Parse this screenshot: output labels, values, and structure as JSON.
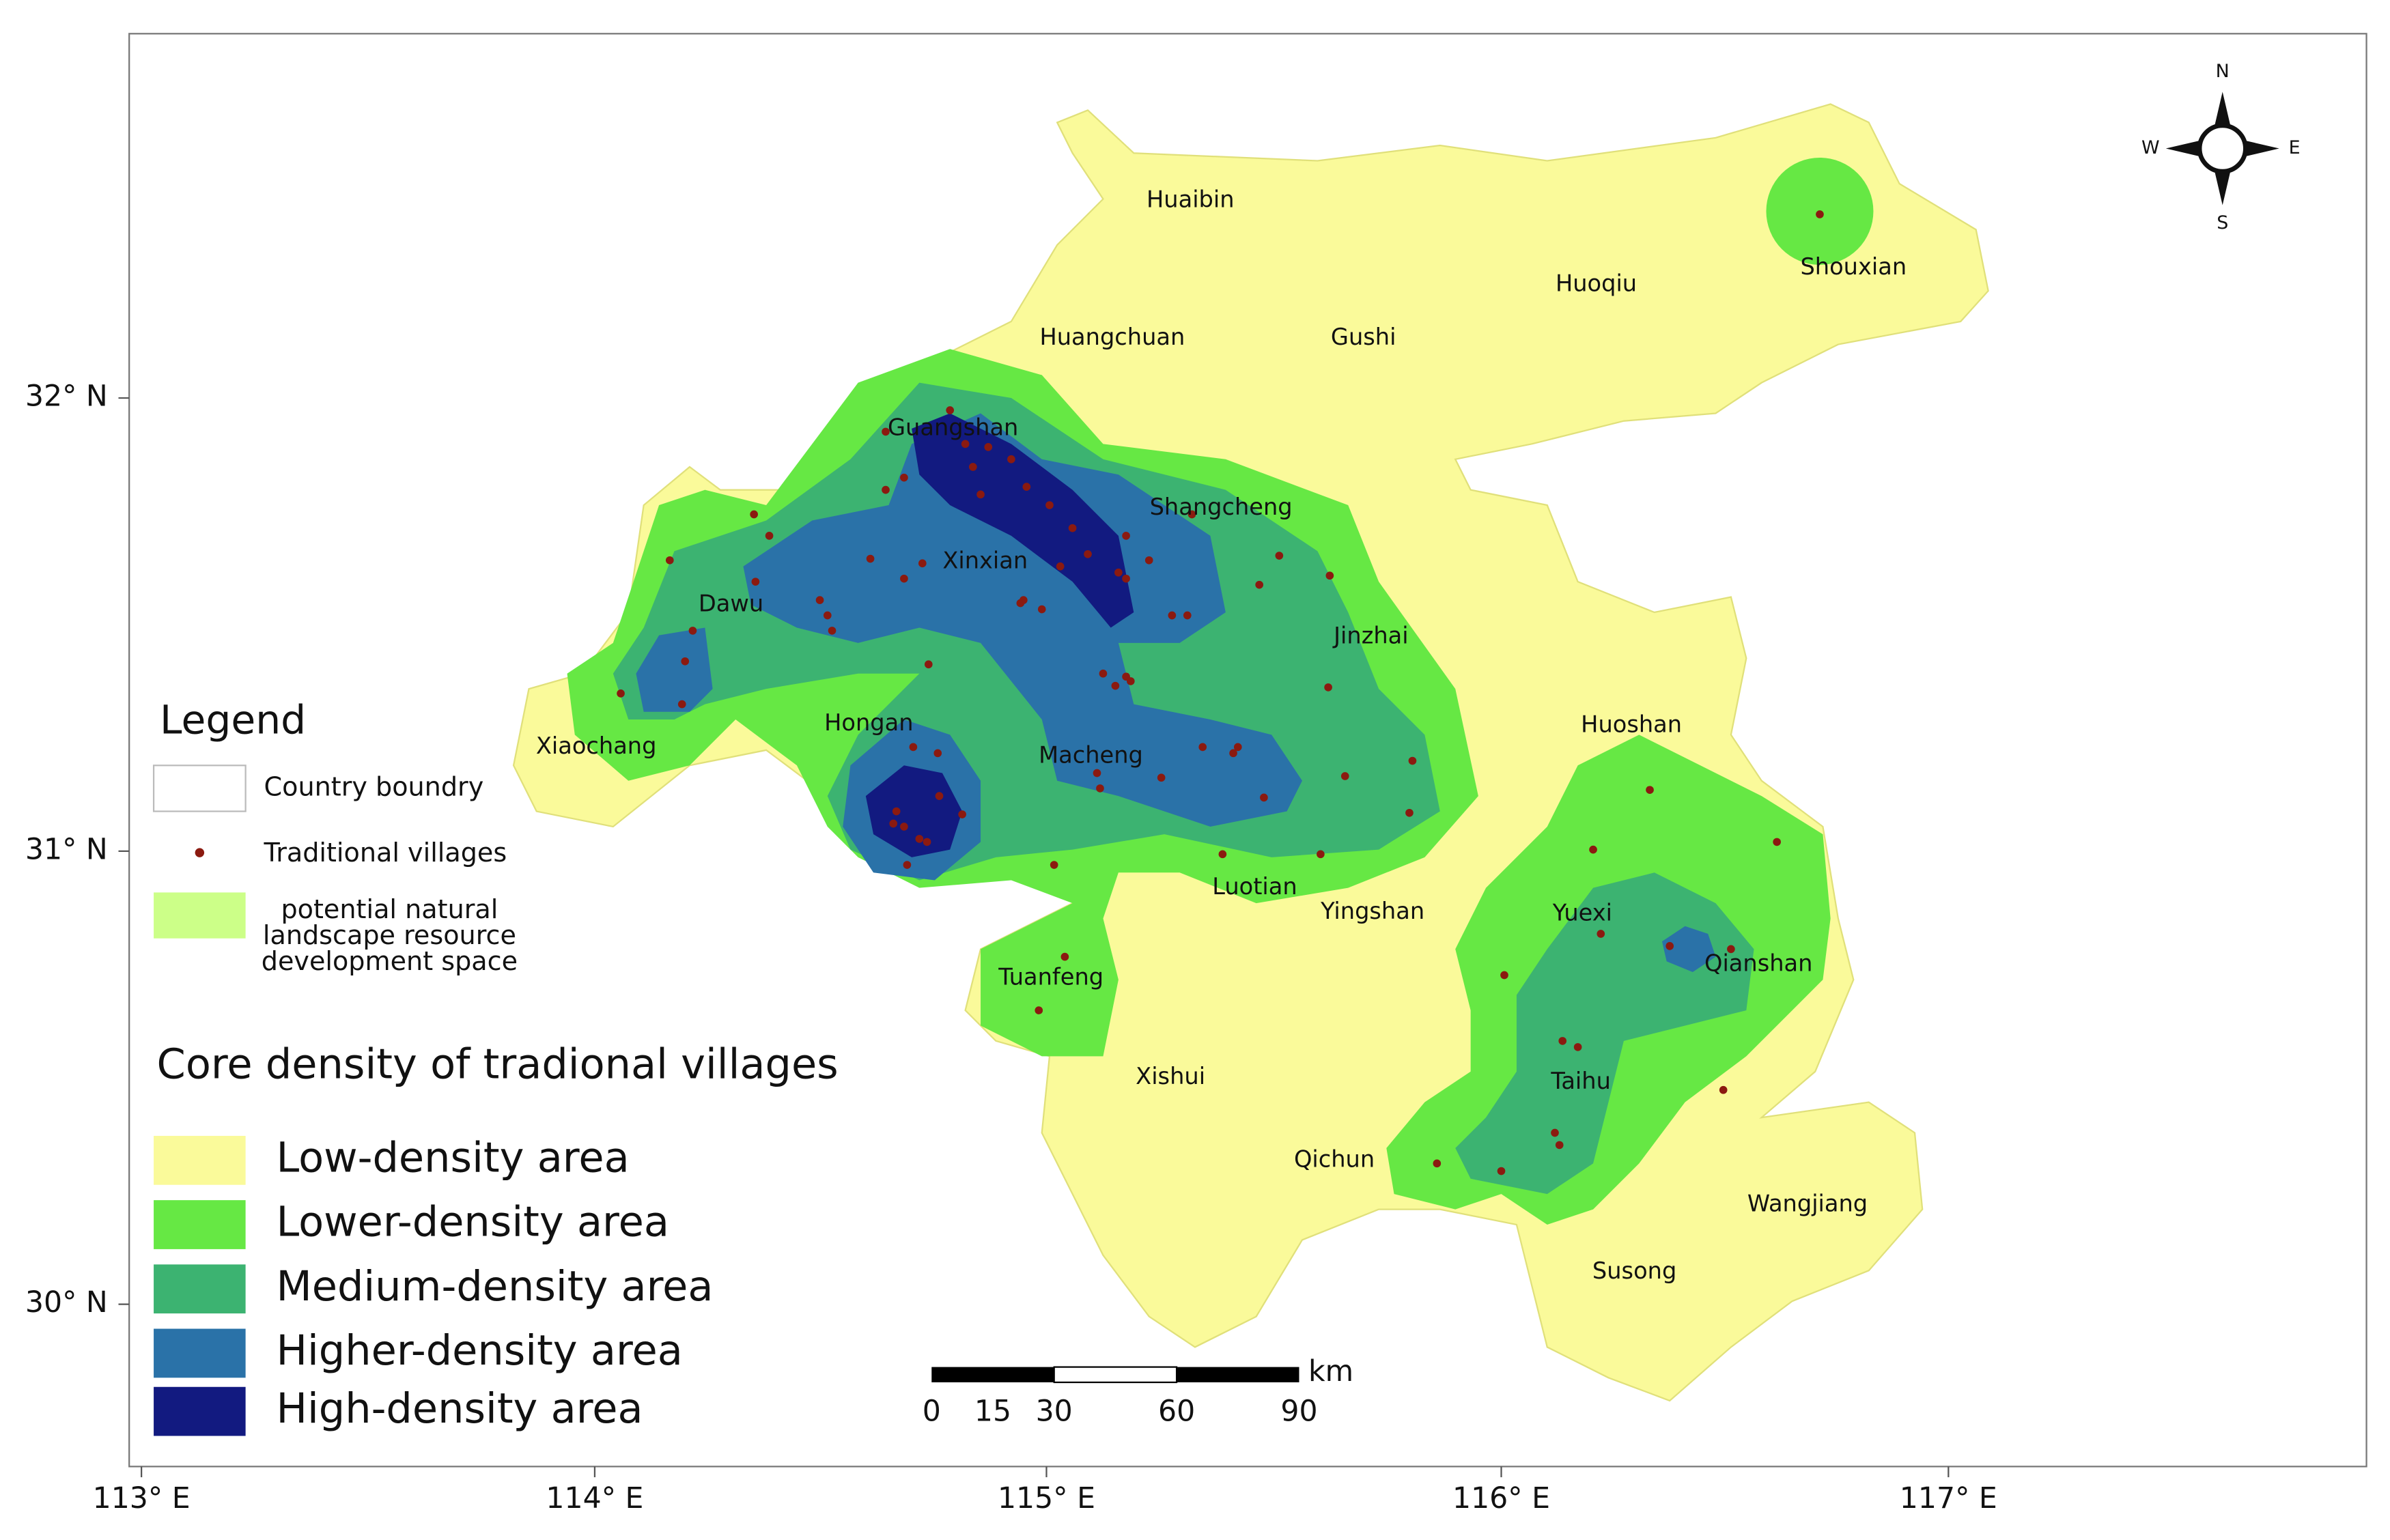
{
  "map": {
    "lat_ticks": [
      "32° N",
      "31° N",
      "30° N"
    ],
    "lon_ticks": [
      "113° E",
      "114° E",
      "115° E",
      "116° E",
      "117° E"
    ],
    "places": [
      "Huaibin",
      "Huangchuan",
      "Gushi",
      "Huoqiu",
      "Shouxian",
      "Guangshan",
      "Shangcheng",
      "Xinxian",
      "Dawu",
      "Jinzhai",
      "Xiaochang",
      "Hongan",
      "Macheng",
      "Huoshan",
      "Luotian",
      "Yingshan",
      "Yuexi",
      "Qianshan",
      "Tuanfeng",
      "Xishui",
      "Taihu",
      "Qichun",
      "Wangjiang",
      "Susong"
    ],
    "compass": {
      "north": "N",
      "south": "S",
      "west": "W",
      "east": "E"
    }
  },
  "legend": {
    "title": "Legend",
    "items": [
      "Country boundry",
      "Traditional villages"
    ],
    "potential_lines": [
      "potential natural",
      "landscape resource",
      "development space"
    ],
    "density_title": "Core density of tradional villages",
    "density_items": [
      "Low-density area",
      "Lower-density area",
      "Medium-density area",
      "Higher-density area",
      "High-density area"
    ]
  },
  "scale_bar": {
    "unit": "km",
    "labels": [
      0,
      15,
      30,
      60,
      90
    ]
  }
}
